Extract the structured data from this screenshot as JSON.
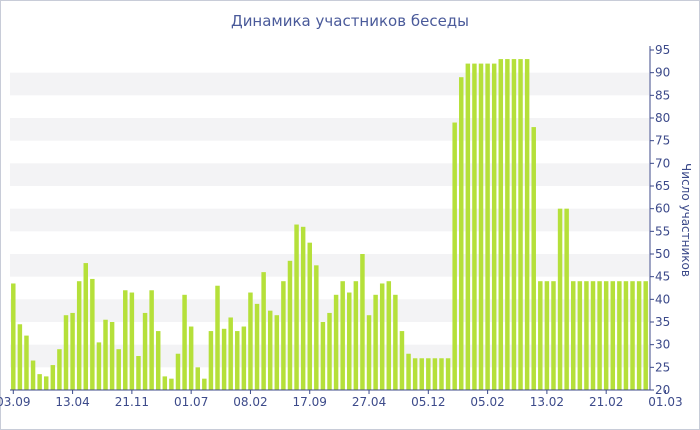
{
  "chart_data": {
    "type": "bar",
    "title": "Динамика участников беседы",
    "ylabel": "Число участников",
    "xlabel": "",
    "ylim": [
      20,
      95
    ],
    "yticks": [
      20,
      25,
      30,
      35,
      40,
      45,
      50,
      55,
      60,
      65,
      70,
      75,
      80,
      85,
      90,
      95
    ],
    "y_axis_side": "right",
    "grid": "alternating horizontal bands",
    "bar_color": "#b5e03a",
    "band_color": "#f3f3f5",
    "axis_color": "#3c4a8a",
    "x_tick_labels": [
      {
        "label": "03.09",
        "index": 0
      },
      {
        "label": "13.04",
        "index": 9
      },
      {
        "label": "21.11",
        "index": 18
      },
      {
        "label": "01.07",
        "index": 27
      },
      {
        "label": "08.02",
        "index": 36
      },
      {
        "label": "17.09",
        "index": 45
      },
      {
        "label": "27.04",
        "index": 54
      },
      {
        "label": "05.12",
        "index": 63
      },
      {
        "label": "05.02",
        "index": 72
      },
      {
        "label": "13.02",
        "index": 81
      },
      {
        "label": "21.02",
        "index": 90
      },
      {
        "label": "01.03",
        "index": 99
      }
    ],
    "values": [
      43.5,
      34.5,
      32,
      26.5,
      23.5,
      23,
      25.5,
      29,
      36.5,
      37,
      44,
      48,
      44.5,
      30.5,
      35.5,
      35,
      29,
      42,
      41.5,
      27.5,
      37,
      42,
      33,
      23,
      22.5,
      28,
      41,
      34,
      25,
      22.5,
      33,
      43,
      33.5,
      36,
      33,
      34,
      41.5,
      39,
      46,
      37.5,
      36.5,
      44,
      48.5,
      56.5,
      56,
      52.5,
      47.5,
      35,
      37,
      41,
      44,
      41.5,
      44,
      50,
      36.5,
      41,
      43.5,
      44,
      41,
      33,
      28,
      27,
      27,
      27,
      27,
      27,
      27,
      79,
      89,
      92,
      92,
      92,
      92,
      92,
      93,
      93,
      93,
      93,
      93,
      78,
      44,
      44,
      44,
      60,
      60,
      44,
      44,
      44,
      44,
      44,
      44,
      44,
      44,
      44,
      44,
      44,
      44
    ]
  }
}
